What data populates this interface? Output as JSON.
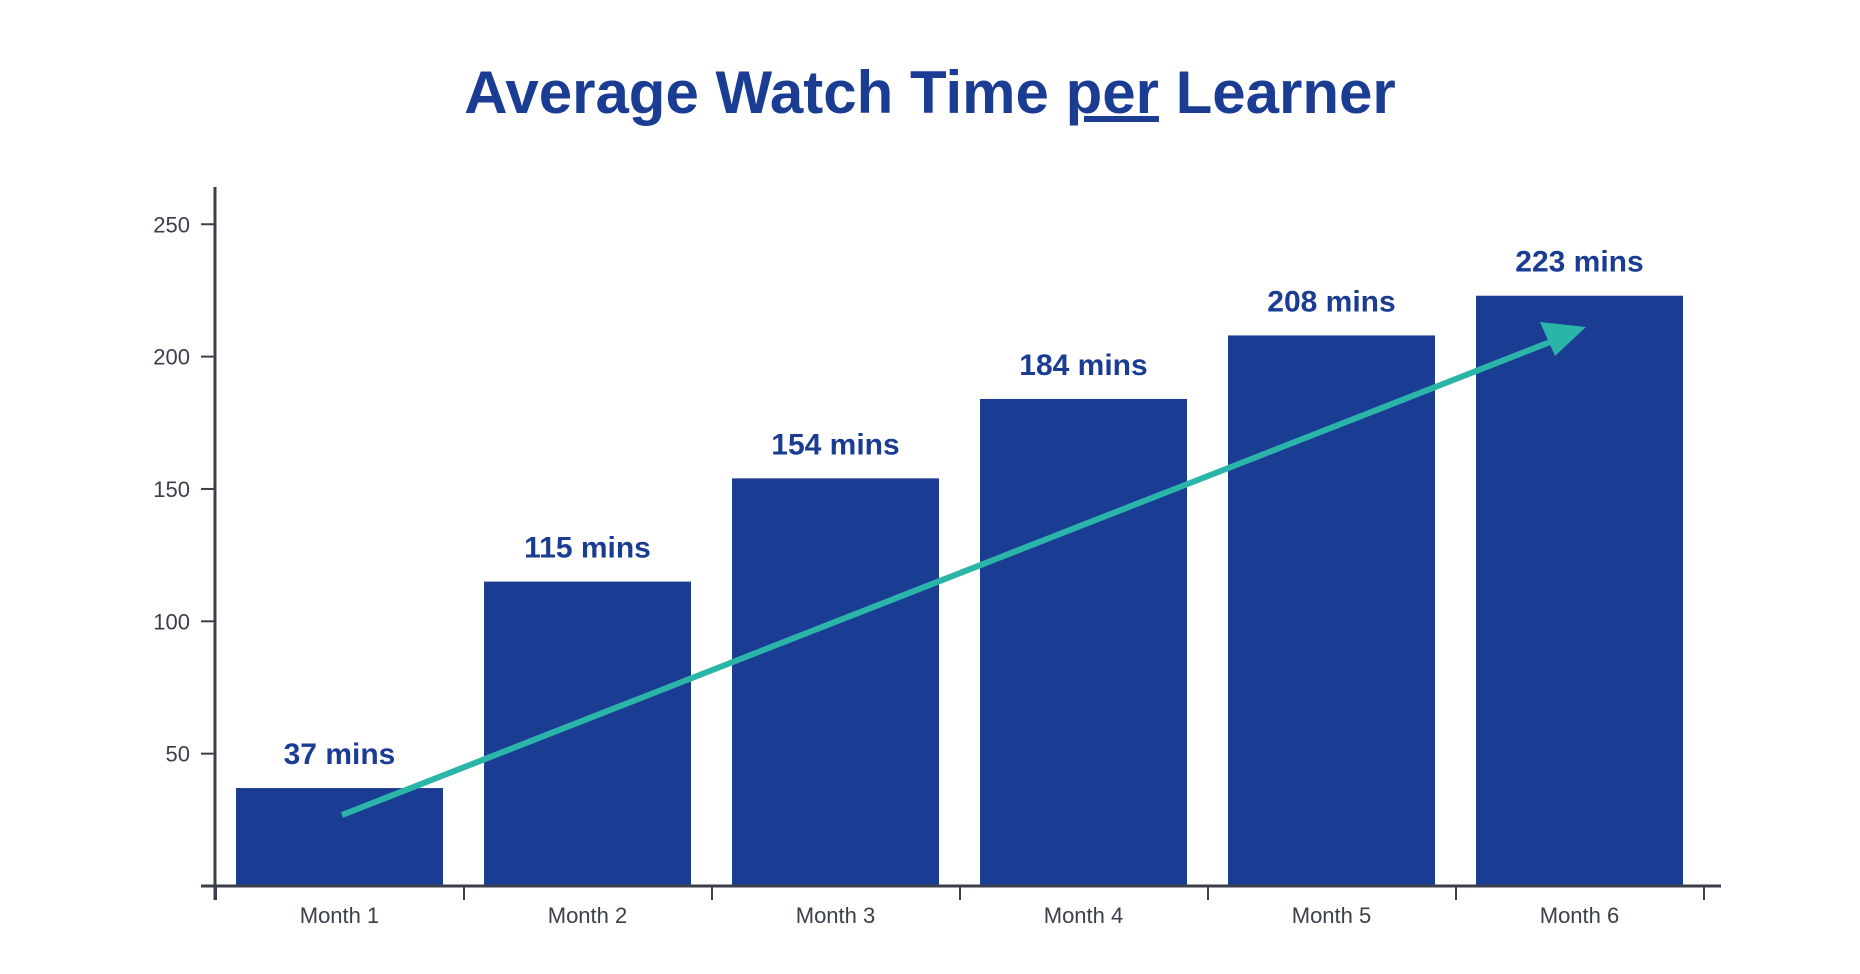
{
  "chart_data": {
    "type": "bar",
    "title_parts": [
      "Average Watch Time ",
      "per",
      " Learner"
    ],
    "categories": [
      "Month 1",
      "Month 2",
      "Month 3",
      "Month 4",
      "Month 5",
      "Month 6"
    ],
    "values": [
      37,
      115,
      154,
      184,
      208,
      223
    ],
    "data_labels": [
      "37 mins",
      "115 mins",
      "154 mins",
      "184 mins",
      "208 mins",
      "223 mins"
    ],
    "xlabel": "",
    "ylabel": "",
    "ylim": [
      0,
      260
    ],
    "yticks": [
      50,
      100,
      150,
      200,
      250
    ],
    "grid": false,
    "legend": "none",
    "trend_arrow": true,
    "colors": {
      "bar": "#1a3d93",
      "title": "#1a3d93",
      "arrow": "#2bb5a8",
      "axis": "#3a3f4b"
    }
  }
}
